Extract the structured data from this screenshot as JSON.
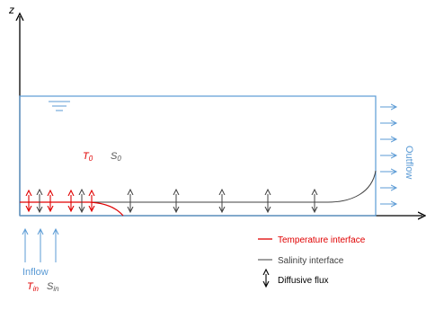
{
  "axes": {
    "z_label": "z"
  },
  "reservoir": {
    "temperature_label": "T",
    "temperature_sub": "0",
    "salinity_label": "S",
    "salinity_sub": "0",
    "outflow_label": "Outflow"
  },
  "inflow": {
    "label": "Inflow",
    "temperature_label": "T",
    "temperature_sub": "in",
    "salinity_label": "S",
    "salinity_sub": "in"
  },
  "legend": {
    "temperature": "Temperature interface",
    "salinity": "Salinity interface",
    "diffusive": "Diffusive flux"
  },
  "colors": {
    "water": "#5B9BD5",
    "temperature": "#E00000",
    "salinity": "#404040",
    "axis": "#000000"
  }
}
